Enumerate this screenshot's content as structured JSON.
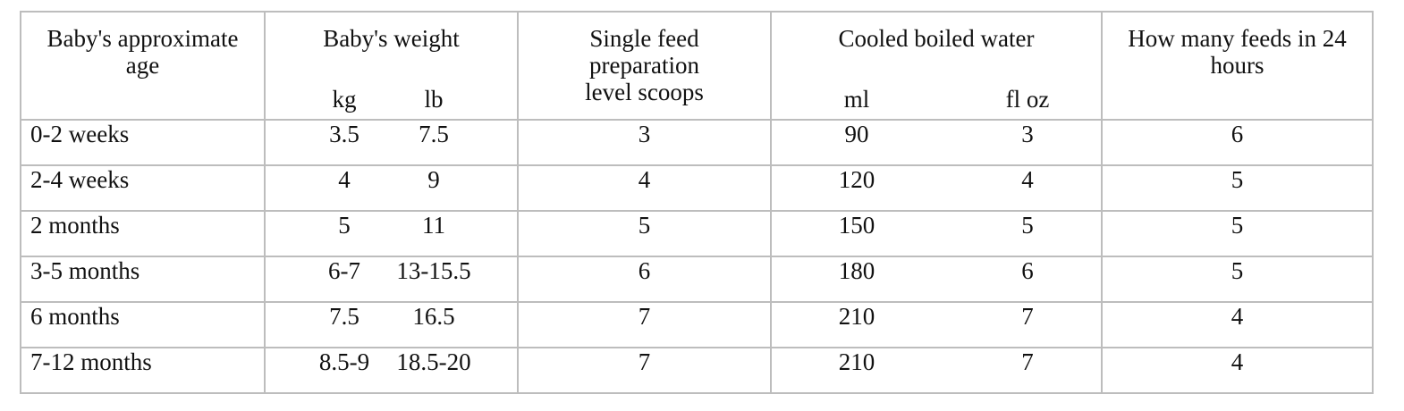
{
  "table": {
    "headers": {
      "age": "Baby's approximate age",
      "weight": "Baby's weight",
      "weight_kg": "kg",
      "weight_lb": "lb",
      "scoops": "Single feed preparation level scoops",
      "water": "Cooled boiled water",
      "water_ml": "ml",
      "water_floz": "fl oz",
      "feeds": "How many feeds in 24 hours"
    },
    "rows": [
      {
        "age": "0-2 weeks",
        "kg": "3.5",
        "lb": "7.5",
        "scoops": "3",
        "ml": "90",
        "floz": "3",
        "feeds": "6"
      },
      {
        "age": "2-4 weeks",
        "kg": "4",
        "lb": "9",
        "scoops": "4",
        "ml": "120",
        "floz": "4",
        "feeds": "5"
      },
      {
        "age": "2 months",
        "kg": "5",
        "lb": "11",
        "scoops": "5",
        "ml": "150",
        "floz": "5",
        "feeds": "5"
      },
      {
        "age": "3-5 months",
        "kg": "6-7",
        "lb": "13-15.5",
        "scoops": "6",
        "ml": "180",
        "floz": "6",
        "feeds": "5"
      },
      {
        "age": "6 months",
        "kg": "7.5",
        "lb": "16.5",
        "scoops": "7",
        "ml": "210",
        "floz": "7",
        "feeds": "4"
      },
      {
        "age": "7-12 months",
        "kg": "8.5-9",
        "lb": "18.5-20",
        "scoops": "7",
        "ml": "210",
        "floz": "7",
        "feeds": "4"
      }
    ]
  }
}
